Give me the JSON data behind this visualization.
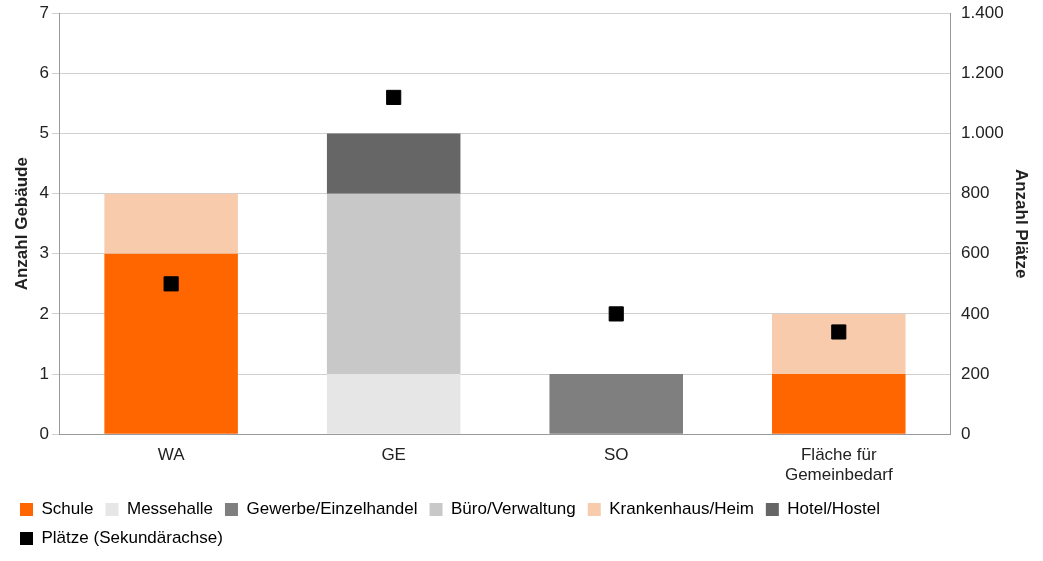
{
  "chart_data": {
    "type": "bar",
    "stacked": true,
    "ylabel": "Anzahl Gebäude",
    "y2label": "Anzahl Plätze",
    "categories": [
      "WA",
      "GE",
      "SO",
      "Fläche für Gemeinbedarf"
    ],
    "series": [
      {
        "name": "Schule",
        "color": "#ff6600",
        "values": [
          3,
          null,
          null,
          1
        ]
      },
      {
        "name": "Messehalle",
        "color": "#e6e6e6",
        "values": [
          null,
          1,
          null,
          null
        ]
      },
      {
        "name": "Gewerbe/Einzelhandel",
        "color": "#7f7f7f",
        "values": [
          null,
          null,
          1,
          null
        ]
      },
      {
        "name": "Büro/Verwaltung",
        "color": "#c8c8c8",
        "values": [
          null,
          3,
          null,
          null
        ]
      },
      {
        "name": "Krankenhaus/Heim",
        "color": "#f8cbad",
        "values": [
          1,
          null,
          null,
          1
        ]
      },
      {
        "name": "Hotel/Hostel",
        "color": "#666666",
        "values": [
          null,
          1,
          null,
          null
        ]
      },
      {
        "name": "Plätze (Sekundärachse)",
        "type": "scatter",
        "axis": "y2",
        "color": "#000000",
        "marker": "square",
        "x": [
          "WA",
          "GE",
          "SO",
          "Fläche für Gemeinbedarf"
        ],
        "values": [
          500,
          1120,
          400,
          340
        ]
      }
    ],
    "ylim": [
      0,
      7
    ],
    "yticks": [
      0,
      1,
      2,
      3,
      4,
      5,
      6,
      7
    ],
    "y2lim": [
      0,
      1400
    ],
    "y2ticks": [
      0,
      200,
      400,
      600,
      800,
      {
        "value": 1000,
        "label": "1.000"
      },
      {
        "value": 1200,
        "label": "1.200"
      },
      {
        "value": 1400,
        "label": "1.400"
      }
    ],
    "grid": "y",
    "legend": "bottom"
  }
}
